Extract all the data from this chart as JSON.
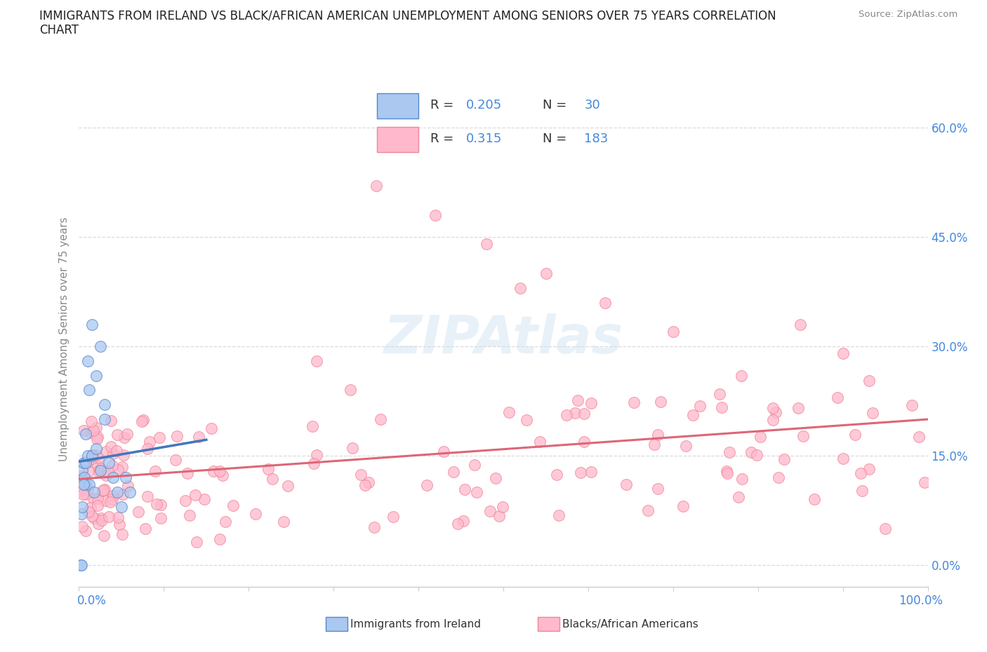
{
  "title_line1": "IMMIGRANTS FROM IRELAND VS BLACK/AFRICAN AMERICAN UNEMPLOYMENT AMONG SENIORS OVER 75 YEARS CORRELATION",
  "title_line2": "CHART",
  "source": "Source: ZipAtlas.com",
  "ylabel": "Unemployment Among Seniors over 75 years",
  "color_ireland_fill": "#aac8f0",
  "color_ireland_edge": "#5588cc",
  "color_black_fill": "#ffb8cc",
  "color_black_edge": "#ee8899",
  "color_trend_ireland": "#4477bb",
  "color_trend_black": "#dd6677",
  "color_text_blue": "#4488dd",
  "color_axis_label": "#888888",
  "color_grid": "#cccccc",
  "R_ireland": "0.205",
  "N_ireland": "30",
  "R_black": "0.315",
  "N_black": "183",
  "xlim": [
    0,
    100
  ],
  "ylim": [
    -3,
    65
  ],
  "ytick_vals": [
    0,
    15,
    30,
    45,
    60
  ],
  "watermark": "ZIPAtlas",
  "scatter_size": 130,
  "scatter_alpha": 0.75
}
